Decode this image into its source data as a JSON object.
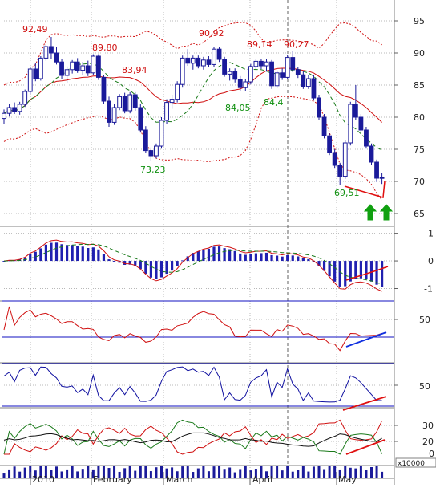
{
  "chart_data": {
    "type": "candlestick",
    "x_labels": [
      "2010",
      "February",
      "March",
      "April",
      "May"
    ],
    "volume_unit": "x10000",
    "candles": [
      [
        79.8,
        81.2,
        79.0,
        80.6
      ],
      [
        80.6,
        82.0,
        80.1,
        81.5
      ],
      [
        81.5,
        82.3,
        80.5,
        80.9
      ],
      [
        80.9,
        82.4,
        80.4,
        82.0
      ],
      [
        82.0,
        84.3,
        81.6,
        84.0
      ],
      [
        84.0,
        87.9,
        83.6,
        87.5
      ],
      [
        87.5,
        88.4,
        85.6,
        86.0
      ],
      [
        86.0,
        89.5,
        85.7,
        89.2
      ],
      [
        89.2,
        91.4,
        88.8,
        91.0
      ],
      [
        91.0,
        92.5,
        89.1,
        90.0
      ],
      [
        90.0,
        90.9,
        88.2,
        88.6
      ],
      [
        88.6,
        89.1,
        86.0,
        86.5
      ],
      [
        86.5,
        87.9,
        85.3,
        87.4
      ],
      [
        87.4,
        88.9,
        86.8,
        88.6
      ],
      [
        88.6,
        89.2,
        86.9,
        87.3
      ],
      [
        87.3,
        88.6,
        86.6,
        88.0
      ],
      [
        88.0,
        88.8,
        86.4,
        86.9
      ],
      [
        86.9,
        89.8,
        86.5,
        89.5
      ],
      [
        89.5,
        89.8,
        85.8,
        86.2
      ],
      [
        86.2,
        86.6,
        82.0,
        82.5
      ],
      [
        82.5,
        83.2,
        78.5,
        79.2
      ],
      [
        79.2,
        82.0,
        78.8,
        81.5
      ],
      [
        81.5,
        83.6,
        81.1,
        83.2
      ],
      [
        83.2,
        83.8,
        80.6,
        81.0
      ],
      [
        81.0,
        83.9,
        80.6,
        83.5
      ],
      [
        83.5,
        83.9,
        81.0,
        81.5
      ],
      [
        81.5,
        82.1,
        77.6,
        78.0
      ],
      [
        78.0,
        78.6,
        74.4,
        74.8
      ],
      [
        74.8,
        75.3,
        73.2,
        74.0
      ],
      [
        74.0,
        75.9,
        73.6,
        75.5
      ],
      [
        75.5,
        80.0,
        75.1,
        79.5
      ],
      [
        79.5,
        82.8,
        79.0,
        82.3
      ],
      [
        82.3,
        83.5,
        81.3,
        82.8
      ],
      [
        82.8,
        85.6,
        82.3,
        85.1
      ],
      [
        85.1,
        89.6,
        84.6,
        89.2
      ],
      [
        89.2,
        90.6,
        88.0,
        88.4
      ],
      [
        88.4,
        89.6,
        87.4,
        89.2
      ],
      [
        89.2,
        89.6,
        87.6,
        88.0
      ],
      [
        88.0,
        89.4,
        87.4,
        88.9
      ],
      [
        88.9,
        89.5,
        87.8,
        88.2
      ],
      [
        88.2,
        90.9,
        87.8,
        90.6
      ],
      [
        90.6,
        90.9,
        88.6,
        89.0
      ],
      [
        89.0,
        89.4,
        86.3,
        86.7
      ],
      [
        86.7,
        87.6,
        85.7,
        87.1
      ],
      [
        87.1,
        87.6,
        85.4,
        85.9
      ],
      [
        85.9,
        86.4,
        84.1,
        84.6
      ],
      [
        84.6,
        86.0,
        84.1,
        85.5
      ],
      [
        85.5,
        88.3,
        85.1,
        87.9
      ],
      [
        87.9,
        89.1,
        87.5,
        88.7
      ],
      [
        88.7,
        89.1,
        87.5,
        88.0
      ],
      [
        88.0,
        89.1,
        87.1,
        88.6
      ],
      [
        88.6,
        88.9,
        84.4,
        84.9
      ],
      [
        84.9,
        87.3,
        84.5,
        86.9
      ],
      [
        86.9,
        87.6,
        85.8,
        86.2
      ],
      [
        86.2,
        89.7,
        85.9,
        89.3
      ],
      [
        89.3,
        90.3,
        87.0,
        87.4
      ],
      [
        87.4,
        87.8,
        86.1,
        86.6
      ],
      [
        86.6,
        87.2,
        84.4,
        84.8
      ],
      [
        84.8,
        86.5,
        84.4,
        86.0
      ],
      [
        86.0,
        86.5,
        82.6,
        83.0
      ],
      [
        83.0,
        83.5,
        79.6,
        80.0
      ],
      [
        80.0,
        80.5,
        76.7,
        77.1
      ],
      [
        77.1,
        77.5,
        74.1,
        74.5
      ],
      [
        74.5,
        75.0,
        72.1,
        72.5
      ],
      [
        72.5,
        72.9,
        69.5,
        70.8
      ],
      [
        70.8,
        76.4,
        70.4,
        76.0
      ],
      [
        76.0,
        82.4,
        75.6,
        82.0
      ],
      [
        82.0,
        85.0,
        79.6,
        80.0
      ],
      [
        80.0,
        80.5,
        77.6,
        78.0
      ],
      [
        78.0,
        78.5,
        75.1,
        75.5
      ],
      [
        75.5,
        75.9,
        72.6,
        73.0
      ],
      [
        73.0,
        73.4,
        69.9,
        70.5
      ],
      [
        70.5,
        71.3,
        69.6,
        70.6
      ]
    ],
    "annotations": [
      {
        "text": "92,49",
        "color": "#d01010"
      },
      {
        "text": "89,80",
        "color": "#d01010"
      },
      {
        "text": "83,94",
        "color": "#d01010"
      },
      {
        "text": "90,92",
        "color": "#d01010"
      },
      {
        "text": "89,14",
        "color": "#d01010"
      },
      {
        "text": "90,27",
        "color": "#d01010"
      },
      {
        "text": "73,23",
        "color": "#109010"
      },
      {
        "text": "84,05",
        "color": "#109010"
      },
      {
        "text": "84,4",
        "color": "#109010"
      },
      {
        "text": "69,51",
        "color": "#109010"
      }
    ],
    "panels": [
      {
        "name": "price",
        "y_ticks": [
          "95",
          "90",
          "85",
          "80",
          "75",
          "70",
          "65"
        ],
        "yrange": [
          63,
          98
        ]
      },
      {
        "name": "macd",
        "y_ticks": [
          "1",
          "0",
          "-1"
        ],
        "yrange": [
          -1.45,
          1.25
        ]
      },
      {
        "name": "rsi",
        "y_ticks": [
          "50"
        ]
      },
      {
        "name": "stochastic",
        "y_ticks": [
          "50"
        ]
      },
      {
        "name": "adx",
        "y_ticks": [
          "30",
          "20"
        ]
      },
      {
        "name": "volume",
        "y_ticks": [
          "0"
        ]
      }
    ],
    "colors": {
      "candle_body": "#1a1a9a",
      "upper_band": "#d01010",
      "ma_red": "#d01010",
      "ma_green": "#1a7a1a",
      "grid": "#b8b8b8",
      "level_line": "#1010c0",
      "divergence_red": "#e01010",
      "divergence_blue": "#1030e0",
      "arrow": "#10a010"
    }
  }
}
